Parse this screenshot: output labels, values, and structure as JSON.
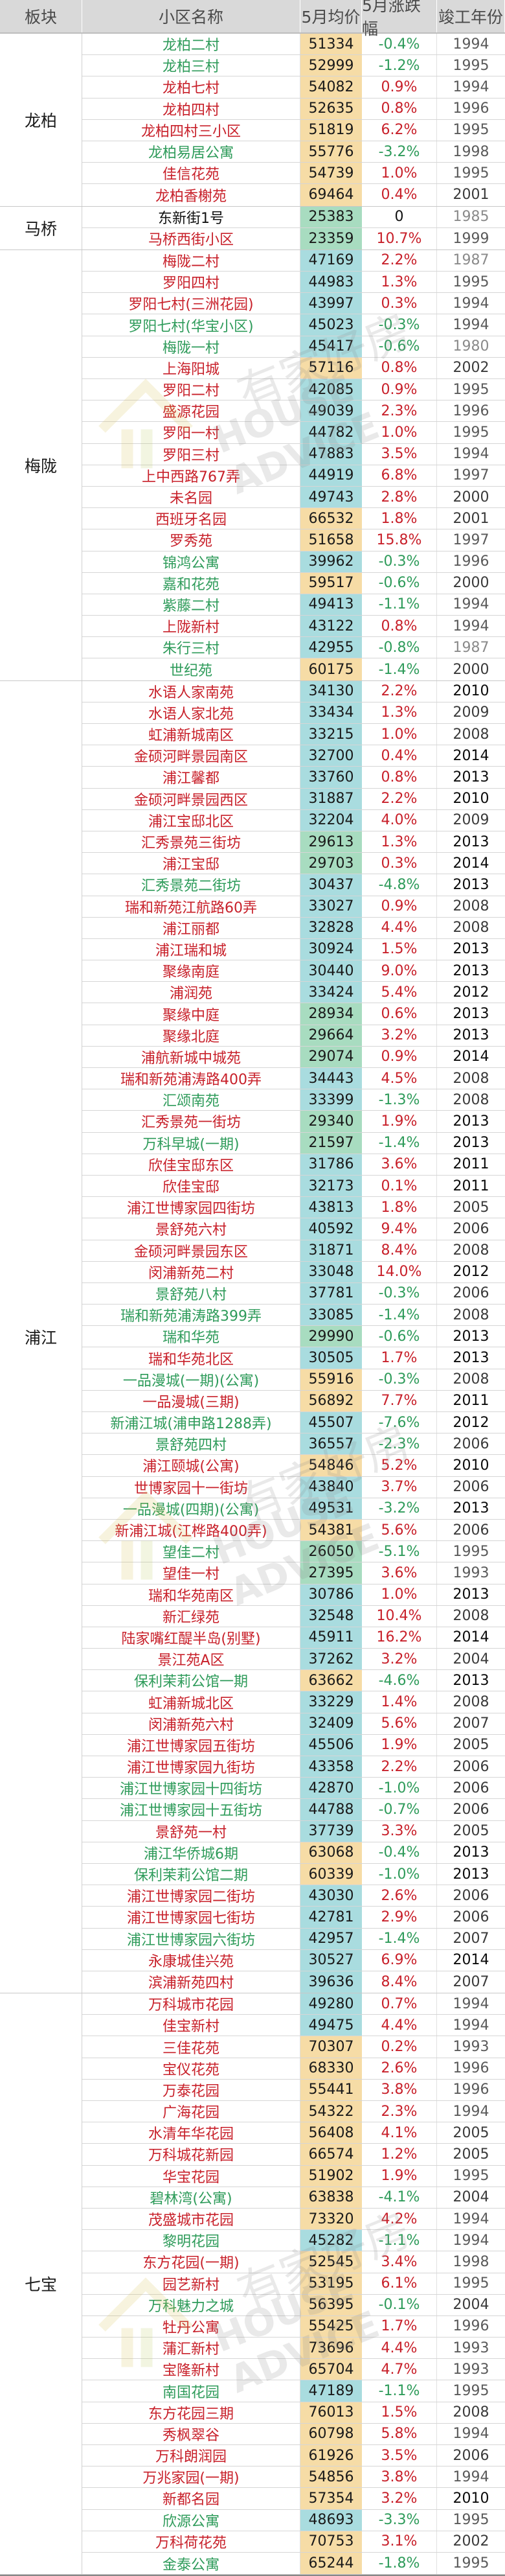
{
  "header": {
    "district": "板块",
    "name": "小区名称",
    "price": "5月均价",
    "change": "5月涨跌幅",
    "year": "竣工年份"
  },
  "watermark": {
    "cn": "有家好房",
    "en": "HOUSE ADVICE",
    "icon": "house-logo-icon"
  },
  "colors": {
    "up": "#c8202a",
    "down": "#2e9b5a",
    "price_low_bg": "#a8dcc0",
    "price_mid_bg": "#a9dcdf",
    "price_high_bg": "#f6dca6",
    "header_bg": "#d9d9d9"
  },
  "sections": [
    {
      "label": "龙柏",
      "rows": [
        {
          "name": "龙柏二村",
          "price": "51334",
          "change": "-0.4%",
          "year": "1994"
        },
        {
          "name": "龙柏三村",
          "price": "52999",
          "change": "-1.2%",
          "year": "1995"
        },
        {
          "name": "龙柏七村",
          "price": "54082",
          "change": "0.9%",
          "year": "1994"
        },
        {
          "name": "龙柏四村",
          "price": "52635",
          "change": "0.8%",
          "year": "1996"
        },
        {
          "name": "龙柏四村三小区",
          "price": "51819",
          "change": "6.2%",
          "year": "1995"
        },
        {
          "name": "龙柏易居公寓",
          "price": "55776",
          "change": "-3.2%",
          "year": "1998"
        },
        {
          "name": "佳信花苑",
          "price": "54739",
          "change": "1.0%",
          "year": "1995"
        },
        {
          "name": "龙柏香榭苑",
          "price": "69464",
          "change": "0.4%",
          "year": "2001"
        }
      ]
    },
    {
      "label": "马桥",
      "rows": [
        {
          "name": "东新街1号",
          "price": "25383",
          "change": "0",
          "year": "1985"
        },
        {
          "name": "马桥西街小区",
          "price": "23359",
          "change": "10.7%",
          "year": "1999"
        }
      ]
    },
    {
      "label": "梅陇",
      "rows": [
        {
          "name": "梅陇二村",
          "price": "47169",
          "change": "2.2%",
          "year": "1987"
        },
        {
          "name": "罗阳四村",
          "price": "44983",
          "change": "1.3%",
          "year": "1995"
        },
        {
          "name": "罗阳七村(三洲花园)",
          "price": "43997",
          "change": "0.3%",
          "year": "1994"
        },
        {
          "name": "罗阳七村(华宝小区)",
          "price": "45023",
          "change": "-0.3%",
          "year": "1994"
        },
        {
          "name": "梅陇一村",
          "price": "45417",
          "change": "-0.6%",
          "year": "1980"
        },
        {
          "name": "上海阳城",
          "price": "57116",
          "change": "0.8%",
          "year": "2002"
        },
        {
          "name": "罗阳二村",
          "price": "42085",
          "change": "0.9%",
          "year": "1995"
        },
        {
          "name": "盛源花园",
          "price": "49039",
          "change": "2.3%",
          "year": "1996"
        },
        {
          "name": "罗阳一村",
          "price": "44782",
          "change": "1.0%",
          "year": "1995"
        },
        {
          "name": "罗阳三村",
          "price": "47883",
          "change": "3.5%",
          "year": "1994"
        },
        {
          "name": "上中西路767弄",
          "price": "44919",
          "change": "6.8%",
          "year": "1997"
        },
        {
          "name": "未名园",
          "price": "49743",
          "change": "2.8%",
          "year": "2000"
        },
        {
          "name": "西班牙名园",
          "price": "66532",
          "change": "1.8%",
          "year": "2001"
        },
        {
          "name": "罗秀苑",
          "price": "51658",
          "change": "15.8%",
          "year": "1997"
        },
        {
          "name": "锦鸿公寓",
          "price": "39962",
          "change": "-0.3%",
          "year": "1996"
        },
        {
          "name": "嘉和花苑",
          "price": "59517",
          "change": "-0.6%",
          "year": "2000"
        },
        {
          "name": "紫藤二村",
          "price": "49413",
          "change": "-1.1%",
          "year": "1994"
        },
        {
          "name": "上陇新村",
          "price": "43122",
          "change": "0.8%",
          "year": "1994"
        },
        {
          "name": "朱行三村",
          "price": "42955",
          "change": "-0.8%",
          "year": "1987"
        },
        {
          "name": "世纪苑",
          "price": "60175",
          "change": "-1.4%",
          "year": "2000"
        }
      ]
    },
    {
      "label": "浦江",
      "rows": [
        {
          "name": "水语人家南苑",
          "price": "34130",
          "change": "2.2%",
          "year": "2010"
        },
        {
          "name": "水语人家北苑",
          "price": "33434",
          "change": "1.3%",
          "year": "2009"
        },
        {
          "name": "虹浦新城南区",
          "price": "33215",
          "change": "1.0%",
          "year": "2008"
        },
        {
          "name": "金硕河畔景园南区",
          "price": "32700",
          "change": "0.4%",
          "year": "2014"
        },
        {
          "name": "浦江馨都",
          "price": "33760",
          "change": "0.8%",
          "year": "2013"
        },
        {
          "name": "金硕河畔景园西区",
          "price": "31887",
          "change": "2.2%",
          "year": "2010"
        },
        {
          "name": "浦江宝邸北区",
          "price": "32204",
          "change": "4.0%",
          "year": "2009"
        },
        {
          "name": "汇秀景苑三街坊",
          "price": "29613",
          "change": "1.3%",
          "year": "2013"
        },
        {
          "name": "浦江宝邸",
          "price": "29703",
          "change": "0.3%",
          "year": "2014"
        },
        {
          "name": "汇秀景苑二街坊",
          "price": "30437",
          "change": "-4.8%",
          "year": "2013"
        },
        {
          "name": "瑞和新苑江航路60弄",
          "price": "33027",
          "change": "0.9%",
          "year": "2008"
        },
        {
          "name": "浦江丽都",
          "price": "32828",
          "change": "4.4%",
          "year": "2008"
        },
        {
          "name": "浦江瑞和城",
          "price": "30924",
          "change": "1.5%",
          "year": "2013"
        },
        {
          "name": "聚缘南庭",
          "price": "30440",
          "change": "9.0%",
          "year": "2013"
        },
        {
          "name": "浦润苑",
          "price": "33424",
          "change": "5.4%",
          "year": "2012"
        },
        {
          "name": "聚缘中庭",
          "price": "28934",
          "change": "0.6%",
          "year": "2013"
        },
        {
          "name": "聚缘北庭",
          "price": "29664",
          "change": "3.2%",
          "year": "2013"
        },
        {
          "name": "浦航新城中城苑",
          "price": "29074",
          "change": "0.9%",
          "year": "2014"
        },
        {
          "name": "瑞和新苑浦涛路400弄",
          "price": "34443",
          "change": "4.5%",
          "year": "2008"
        },
        {
          "name": "汇颂南苑",
          "price": "33399",
          "change": "-1.3%",
          "year": "2008"
        },
        {
          "name": "汇秀景苑一街坊",
          "price": "29340",
          "change": "1.9%",
          "year": "2013"
        },
        {
          "name": "万科早城(一期)",
          "price": "21597",
          "change": "-1.4%",
          "year": "2013"
        },
        {
          "name": "欣佳宝邸东区",
          "price": "31786",
          "change": "3.6%",
          "year": "2011"
        },
        {
          "name": "欣佳宝邸",
          "price": "32173",
          "change": "0.1%",
          "year": "2011"
        },
        {
          "name": "浦江世博家园四街坊",
          "price": "43813",
          "change": "1.8%",
          "year": "2005"
        },
        {
          "name": "景舒苑六村",
          "price": "40592",
          "change": "9.4%",
          "year": "2006"
        },
        {
          "name": "金硕河畔景园东区",
          "price": "31871",
          "change": "8.4%",
          "year": "2008"
        },
        {
          "name": "闵浦新苑二村",
          "price": "33048",
          "change": "14.0%",
          "year": "2012"
        },
        {
          "name": "景舒苑八村",
          "price": "37781",
          "change": "-0.3%",
          "year": "2006"
        },
        {
          "name": "瑞和新苑浦涛路399弄",
          "price": "33085",
          "change": "-1.4%",
          "year": "2008"
        },
        {
          "name": "瑞和华苑",
          "price": "29990",
          "change": "-0.6%",
          "year": "2013"
        },
        {
          "name": "瑞和华苑北区",
          "price": "30505",
          "change": "1.7%",
          "year": "2013"
        },
        {
          "name": "一品漫城(一期)(公寓)",
          "price": "55916",
          "change": "-0.3%",
          "year": "2008"
        },
        {
          "name": "一品漫城(三期)",
          "price": "56892",
          "change": "7.7%",
          "year": "2011"
        },
        {
          "name": "新浦江城(浦申路1288弄)",
          "price": "45507",
          "change": "-7.6%",
          "year": "2012"
        },
        {
          "name": "景舒苑四村",
          "price": "36557",
          "change": "-2.3%",
          "year": "2006"
        },
        {
          "name": "浦江颐城(公寓)",
          "price": "54846",
          "change": "5.2%",
          "year": "2010"
        },
        {
          "name": "世博家园十一街坊",
          "price": "43840",
          "change": "3.7%",
          "year": "2006"
        },
        {
          "name": "一品漫城(四期)(公寓)",
          "price": "49531",
          "change": "-3.2%",
          "year": "2013"
        },
        {
          "name": "新浦江城(江桦路400弄)",
          "price": "54381",
          "change": "5.6%",
          "year": "2006"
        },
        {
          "name": "望佳二村",
          "price": "26050",
          "change": "-5.1%",
          "year": "1995"
        },
        {
          "name": "望佳一村",
          "price": "27395",
          "change": "3.6%",
          "year": "1993"
        },
        {
          "name": "瑞和华苑南区",
          "price": "30786",
          "change": "1.0%",
          "year": "2013"
        },
        {
          "name": "新汇绿苑",
          "price": "32548",
          "change": "10.4%",
          "year": "2008"
        },
        {
          "name": "陆家嘴红醍半岛(别墅)",
          "price": "45911",
          "change": "16.2%",
          "year": "2014"
        },
        {
          "name": "景江苑A区",
          "price": "37262",
          "change": "3.2%",
          "year": "2004"
        },
        {
          "name": "保利茉莉公馆一期",
          "price": "63662",
          "change": "-4.6%",
          "year": "2013"
        },
        {
          "name": "虹浦新城北区",
          "price": "33229",
          "change": "1.4%",
          "year": "2008"
        },
        {
          "name": "闵浦新苑六村",
          "price": "32409",
          "change": "5.6%",
          "year": "2007"
        },
        {
          "name": "浦江世博家园五街坊",
          "price": "45506",
          "change": "1.9%",
          "year": "2005"
        },
        {
          "name": "浦江世博家园九街坊",
          "price": "43358",
          "change": "2.2%",
          "year": "2006"
        },
        {
          "name": "浦江世博家园十四街坊",
          "price": "42870",
          "change": "-1.0%",
          "year": "2006"
        },
        {
          "name": "浦江世博家园十五街坊",
          "price": "44788",
          "change": "-0.7%",
          "year": "2006"
        },
        {
          "name": "景舒苑一村",
          "price": "37739",
          "change": "3.3%",
          "year": "2005"
        },
        {
          "name": "浦江华侨城6期",
          "price": "63068",
          "change": "-0.4%",
          "year": "2013"
        },
        {
          "name": "保利茉莉公馆二期",
          "price": "60339",
          "change": "-1.0%",
          "year": "2013"
        },
        {
          "name": "浦江世博家园二街坊",
          "price": "43030",
          "change": "2.6%",
          "year": "2006"
        },
        {
          "name": "浦江世博家园七街坊",
          "price": "42781",
          "change": "2.9%",
          "year": "2006"
        },
        {
          "name": "浦江世博家园六街坊",
          "price": "42957",
          "change": "-1.4%",
          "year": "2007"
        },
        {
          "name": "永康城佳兴苑",
          "price": "30527",
          "change": "6.9%",
          "year": "2014"
        },
        {
          "name": "滨浦新苑四村",
          "price": "39636",
          "change": "8.4%",
          "year": "2007"
        }
      ]
    },
    {
      "label": "七宝",
      "rows": [
        {
          "name": "万科城市花园",
          "price": "49280",
          "change": "0.7%",
          "year": "1994"
        },
        {
          "name": "佳宝新村",
          "price": "49475",
          "change": "4.4%",
          "year": "1994"
        },
        {
          "name": "三佳花苑",
          "price": "70307",
          "change": "0.2%",
          "year": "1993"
        },
        {
          "name": "宝仪花苑",
          "price": "68330",
          "change": "2.6%",
          "year": "1996"
        },
        {
          "name": "万泰花园",
          "price": "55441",
          "change": "3.8%",
          "year": "1996"
        },
        {
          "name": "广海花园",
          "price": "54322",
          "change": "2.3%",
          "year": "1994"
        },
        {
          "name": "水清年华花园",
          "price": "56408",
          "change": "4.1%",
          "year": "2005"
        },
        {
          "name": "万科城花新园",
          "price": "66574",
          "change": "1.2%",
          "year": "2005"
        },
        {
          "name": "华宝花园",
          "price": "51902",
          "change": "1.9%",
          "year": "1995"
        },
        {
          "name": "碧林湾(公寓)",
          "price": "63838",
          "change": "-4.1%",
          "year": "2004"
        },
        {
          "name": "茂盛城市花园",
          "price": "73320",
          "change": "4.2%",
          "year": "1994"
        },
        {
          "name": "黎明花园",
          "price": "45282",
          "change": "-1.1%",
          "year": "1994"
        },
        {
          "name": "东方花园(一期)",
          "price": "52545",
          "change": "3.4%",
          "year": "1998"
        },
        {
          "name": "园艺新村",
          "price": "53195",
          "change": "6.1%",
          "year": "1995"
        },
        {
          "name": "万科魅力之城",
          "price": "56395",
          "change": "-0.1%",
          "year": "2004"
        },
        {
          "name": "牡丹公寓",
          "price": "55425",
          "change": "1.7%",
          "year": "1996"
        },
        {
          "name": "蒲汇新村",
          "price": "73696",
          "change": "4.4%",
          "year": "1993"
        },
        {
          "name": "宝隆新村",
          "price": "65704",
          "change": "4.7%",
          "year": "1993"
        },
        {
          "name": "南国花园",
          "price": "47189",
          "change": "-1.1%",
          "year": "1995"
        },
        {
          "name": "东方花园三期",
          "price": "76013",
          "change": "1.5%",
          "year": "2008"
        },
        {
          "name": "秀枫翠谷",
          "price": "60798",
          "change": "5.8%",
          "year": "1994"
        },
        {
          "name": "万科朗润园",
          "price": "61926",
          "change": "3.5%",
          "year": "2006"
        },
        {
          "name": "万兆家园(一期)",
          "price": "54856",
          "change": "3.8%",
          "year": "1994"
        },
        {
          "name": "新都名园",
          "price": "57354",
          "change": "3.2%",
          "year": "2010"
        },
        {
          "name": "欣源公寓",
          "price": "48693",
          "change": "-3.3%",
          "year": "1995"
        },
        {
          "name": "万科荷花苑",
          "price": "70753",
          "change": "3.1%",
          "year": "2002"
        },
        {
          "name": "金泰公寓",
          "price": "65244",
          "change": "-1.8%",
          "year": "1995"
        }
      ]
    }
  ]
}
